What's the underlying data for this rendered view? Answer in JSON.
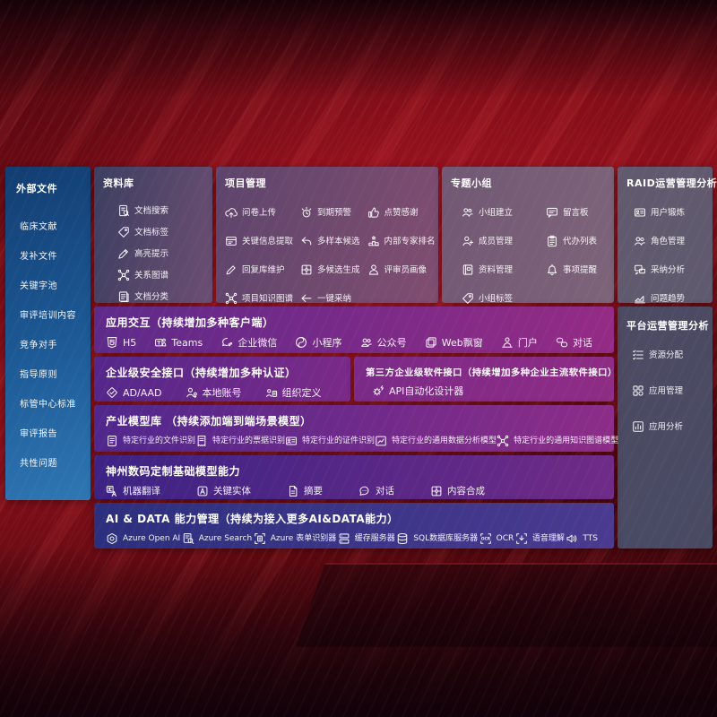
{
  "colors": {
    "background_red": "#7e0c16",
    "sidebar_blue": "#1d5a96",
    "band_purple": "#7b2a88",
    "band_indigo": "#2e3080",
    "panel_slate": "#5d6176"
  },
  "sidebar": {
    "title": "外部文件",
    "items": [
      "临床文献",
      "发补文件",
      "关键字池",
      "审评培训内容",
      "竞争对手",
      "指导原则",
      "标管中心标准",
      "审评报告",
      "共性问题"
    ]
  },
  "repo": {
    "title": "资料库",
    "items": [
      {
        "icon": "doc-search-icon",
        "label": "文档搜索"
      },
      {
        "icon": "doc-tag-icon",
        "label": "文档标签"
      },
      {
        "icon": "highlight-pen-icon",
        "label": "高亮提示"
      },
      {
        "icon": "relation-graph-icon",
        "label": "关系图谱"
      },
      {
        "icon": "doc-classify-icon",
        "label": "文档分类"
      }
    ]
  },
  "project": {
    "title": "项目管理",
    "columns": [
      [
        {
          "icon": "cloud-upload-icon",
          "label": "问卷上传"
        },
        {
          "icon": "info-extract-icon",
          "label": "关键信息提取"
        },
        {
          "icon": "edit-pen-icon",
          "label": "回复库维护"
        },
        {
          "icon": "knowledge-graph-icon",
          "label": "项目知识图谱"
        }
      ],
      [
        {
          "icon": "alarm-icon",
          "label": "到期预警"
        },
        {
          "icon": "multi-sample-icon",
          "label": "多样本候选"
        },
        {
          "icon": "multi-generate-icon",
          "label": "多候选生成"
        },
        {
          "icon": "one-click-adopt-icon",
          "label": "一键采纳"
        }
      ],
      [
        {
          "icon": "thumbs-up-icon",
          "label": "点赞感谢"
        },
        {
          "icon": "ranking-icon",
          "label": "内部专家排名"
        },
        {
          "icon": "reviewer-profile-icon",
          "label": "评审员画像"
        }
      ]
    ]
  },
  "group": {
    "title": "专题小组",
    "columns": [
      [
        {
          "icon": "team-build-icon",
          "label": "小组建立"
        },
        {
          "icon": "member-manage-icon",
          "label": "成员管理"
        },
        {
          "icon": "material-manage-icon",
          "label": "资料管理"
        },
        {
          "icon": "group-tag-icon",
          "label": "小组标签"
        }
      ],
      [
        {
          "icon": "bbs-board-icon",
          "label": "留言板"
        },
        {
          "icon": "todo-list-icon",
          "label": "代办列表"
        },
        {
          "icon": "reminder-bell-icon",
          "label": "事项提醒"
        }
      ]
    ]
  },
  "raid": {
    "title": "RAID运营管理分析",
    "items": [
      {
        "icon": "user-card-icon",
        "label": "用户锻炼"
      },
      {
        "icon": "role-manage-icon",
        "label": "角色管理"
      },
      {
        "icon": "qa-analysis-icon",
        "label": "采纳分析"
      },
      {
        "icon": "trend-chart-icon",
        "label": "问题趋势"
      }
    ]
  },
  "platform": {
    "title": "平台运营管理分析",
    "items": [
      {
        "icon": "resource-list-icon",
        "label": "资源分配"
      },
      {
        "icon": "app-grid-icon",
        "label": "应用管理"
      },
      {
        "icon": "app-analysis-icon",
        "label": "应用分析"
      }
    ]
  },
  "interaction": {
    "title": "应用交互（持续增加多种客户端）",
    "items": [
      {
        "icon": "html5-icon",
        "label": "H5"
      },
      {
        "icon": "teams-icon",
        "label": "Teams"
      },
      {
        "icon": "wechat-work-icon",
        "label": "企业微信"
      },
      {
        "icon": "miniprogram-icon",
        "label": "小程序"
      },
      {
        "icon": "official-account-icon",
        "label": "公众号"
      },
      {
        "icon": "web-popup-icon",
        "label": "Web飘窗"
      },
      {
        "icon": "portal-icon",
        "label": "门户"
      },
      {
        "icon": "dialog-icon",
        "label": "对话"
      }
    ]
  },
  "security": {
    "title": "企业级安全接口（持续增加多种认证）",
    "items": [
      {
        "icon": "ad-aad-icon",
        "label": "AD/AAD"
      },
      {
        "icon": "local-account-icon",
        "label": "本地账号"
      },
      {
        "icon": "org-define-icon",
        "label": "组织定义"
      }
    ]
  },
  "thirdparty": {
    "title": "第三方企业级软件接口（持续增加多种企业主流软件接口）",
    "items": [
      {
        "icon": "api-designer-icon",
        "label": "API自动化设计器"
      }
    ]
  },
  "models": {
    "title": "产业模型库 （持续添加端到端场景模型）",
    "items": [
      {
        "icon": "file-recognition-icon",
        "label": "特定行业的文件识别"
      },
      {
        "icon": "receipt-recognition-icon",
        "label": "特定行业的票据识别"
      },
      {
        "icon": "cert-recognition-icon",
        "label": "特定行业的证件识别"
      },
      {
        "icon": "data-analysis-model-icon",
        "label": "特定行业的通用数据分析模型"
      },
      {
        "icon": "knowledge-graph-model-icon",
        "label": "特定行业的通用知识图谱模型"
      }
    ]
  },
  "foundation": {
    "title": "神州数码定制基础模型能力",
    "items": [
      {
        "icon": "translate-icon",
        "label": "机器翻译"
      },
      {
        "icon": "entity-icon",
        "label": "关键实体"
      },
      {
        "icon": "summary-icon",
        "label": "摘要"
      },
      {
        "icon": "chat-icon",
        "label": "对话"
      },
      {
        "icon": "compose-icon",
        "label": "内容合成"
      }
    ]
  },
  "aidata": {
    "title": "AI & DATA 能力管理（持续为接入更多AI&DATA能力）",
    "items": [
      {
        "icon": "openai-icon",
        "label": "Azure Open AI"
      },
      {
        "icon": "azure-search-icon",
        "label": "Azure Search"
      },
      {
        "icon": "form-recognizer-icon",
        "label": "Azure 表单识别器"
      },
      {
        "icon": "cache-server-icon",
        "label": "缓存服务器"
      },
      {
        "icon": "sql-db-icon",
        "label": "SQL数据库服务器"
      },
      {
        "icon": "ocr-icon",
        "label": "OCR"
      },
      {
        "icon": "speech-icon",
        "label": "语音理解"
      },
      {
        "icon": "tts-icon",
        "label": "TTS"
      }
    ]
  }
}
